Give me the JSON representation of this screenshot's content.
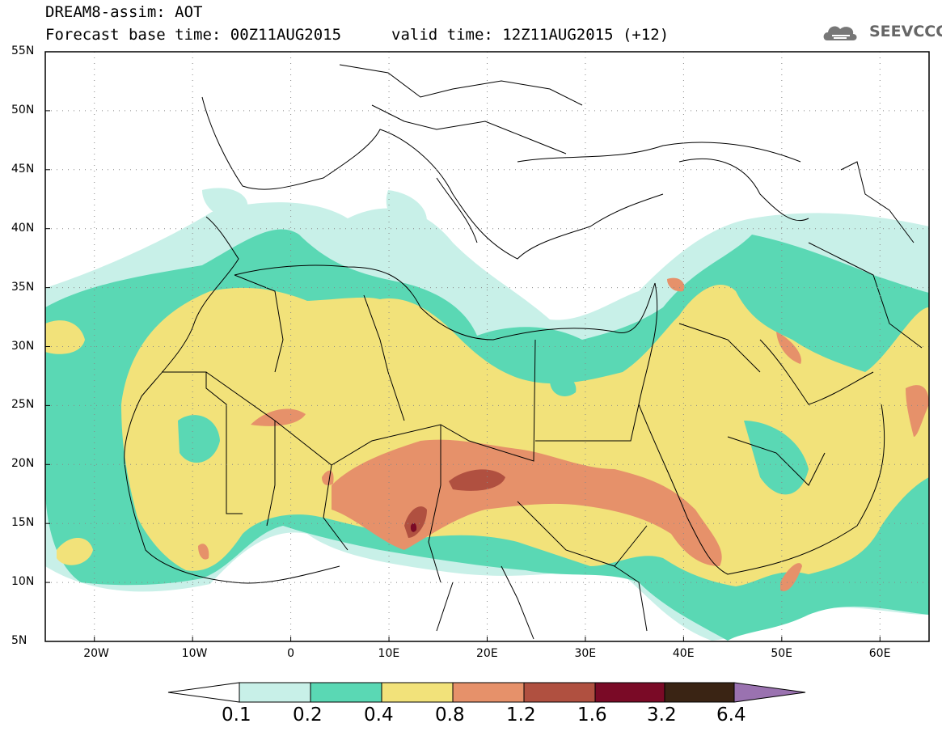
{
  "header": {
    "title": "DREAM8-assim: AOT",
    "base_time": "Forecast base time: 00Z11AUG2015",
    "valid_time": "valid time: 12Z11AUG2015 (+12)",
    "logo_text": "SEEVCCC"
  },
  "axes": {
    "lat_labels": [
      "55N",
      "50N",
      "45N",
      "40N",
      "35N",
      "30N",
      "25N",
      "20N",
      "15N",
      "10N",
      "5N"
    ],
    "lat_values": [
      55,
      50,
      45,
      40,
      35,
      30,
      25,
      20,
      15,
      10,
      5
    ],
    "lon_labels": [
      "20W",
      "10W",
      "0",
      "10E",
      "20E",
      "30E",
      "40E",
      "50E",
      "60E"
    ],
    "lon_values": [
      -20,
      -10,
      0,
      10,
      20,
      30,
      40,
      50,
      60
    ],
    "lon_range": [
      -25,
      65
    ],
    "lat_range": [
      5,
      55
    ]
  },
  "colorbar": {
    "labels": [
      "0.1",
      "0.2",
      "0.4",
      "0.8",
      "1.2",
      "1.6",
      "3.2",
      "6.4"
    ],
    "colors": [
      "#c8f0e8",
      "#5ad8b4",
      "#f2e27a",
      "#e6916a",
      "#b05040",
      "#7a0a26",
      "#3a2414",
      "#9a72b0"
    ]
  },
  "field_colors": {
    "level_0_1": "#c8f0e8",
    "level_0_2": "#5ad8b4",
    "level_0_4": "#f2e27a",
    "level_0_8": "#e6916a",
    "level_1_2": "#b05040",
    "level_1_6": "#7a0a26"
  }
}
